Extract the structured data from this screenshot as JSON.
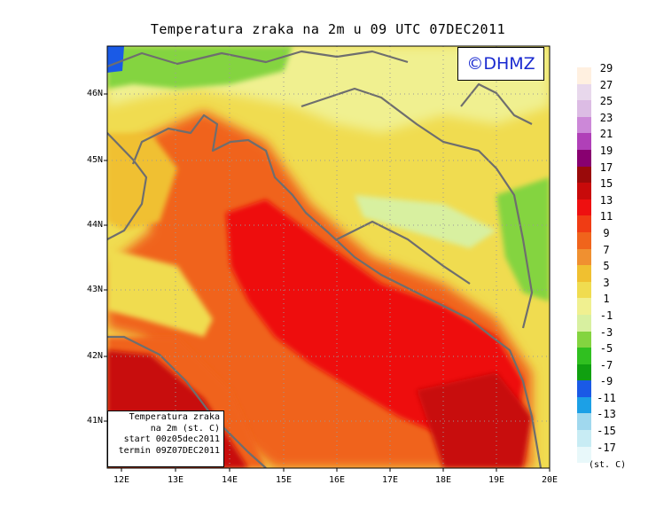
{
  "title": "Temperatura zraka na 2m u 09 UTC 07DEC2011",
  "logo_text": "©DHMZ",
  "info_box": {
    "line1": "Temperatura zraka",
    "line2": "na 2m (st. C)",
    "line3": "start 00z05dec2011",
    "line4": "termin 09Z07DEC2011"
  },
  "y_ticks": [
    "46N",
    "45N",
    "44N",
    "43N",
    "42N",
    "41N"
  ],
  "x_ticks": [
    "12E",
    "13E",
    "14E",
    "15E",
    "16E",
    "17E",
    "18E",
    "19E",
    "20E"
  ],
  "legend": {
    "unit": "(st. C)",
    "entries": [
      {
        "label": "29",
        "color": "#fff0e0"
      },
      {
        "label": "27",
        "color": "#e8d8ec"
      },
      {
        "label": "25",
        "color": "#dcbce4"
      },
      {
        "label": "23",
        "color": "#cc88d8"
      },
      {
        "label": "21",
        "color": "#b040b8"
      },
      {
        "label": "19",
        "color": "#880070"
      },
      {
        "label": "17",
        "color": "#9a0a0a"
      },
      {
        "label": "15",
        "color": "#c80a0a"
      },
      {
        "label": "13",
        "color": "#ee1010"
      },
      {
        "label": "11",
        "color": "#f03c14"
      },
      {
        "label": "9",
        "color": "#f0641c"
      },
      {
        "label": "7",
        "color": "#f09030"
      },
      {
        "label": "5",
        "color": "#f0c030"
      },
      {
        "label": "3",
        "color": "#f0dc50"
      },
      {
        "label": "1",
        "color": "#f0f090"
      },
      {
        "label": "-1",
        "color": "#d8f0a0"
      },
      {
        "label": "-3",
        "color": "#84d440"
      },
      {
        "label": "-5",
        "color": "#30c020"
      },
      {
        "label": "-7",
        "color": "#10a010"
      },
      {
        "label": "-9",
        "color": "#1a5ae6"
      },
      {
        "label": "-11",
        "color": "#1ca0e6"
      },
      {
        "label": "-13",
        "color": "#a0d8ee"
      },
      {
        "label": "-15",
        "color": "#c8ecf4"
      },
      {
        "label": "-17",
        "color": "#e8f8fa"
      }
    ]
  }
}
